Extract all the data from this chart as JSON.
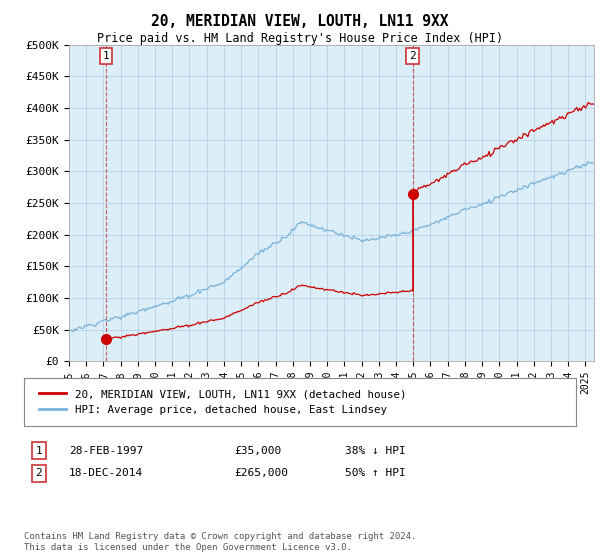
{
  "title": "20, MERIDIAN VIEW, LOUTH, LN11 9XX",
  "subtitle": "Price paid vs. HM Land Registry's House Price Index (HPI)",
  "ylim": [
    0,
    500000
  ],
  "yticks": [
    0,
    50000,
    100000,
    150000,
    200000,
    250000,
    300000,
    350000,
    400000,
    450000,
    500000
  ],
  "ytick_labels": [
    "£0",
    "£50K",
    "£100K",
    "£150K",
    "£200K",
    "£250K",
    "£300K",
    "£350K",
    "£400K",
    "£450K",
    "£500K"
  ],
  "sale1_date": 1997.16,
  "sale1_price": 35000,
  "sale2_date": 2014.96,
  "sale2_price": 265000,
  "legend_entries": [
    "20, MERIDIAN VIEW, LOUTH, LN11 9XX (detached house)",
    "HPI: Average price, detached house, East Lindsey"
  ],
  "table_rows": [
    [
      "1",
      "28-FEB-1997",
      "£35,000",
      "38% ↓ HPI"
    ],
    [
      "2",
      "18-DEC-2014",
      "£265,000",
      "50% ↑ HPI"
    ]
  ],
  "footnote": "Contains HM Land Registry data © Crown copyright and database right 2024.\nThis data is licensed under the Open Government Licence v3.0.",
  "hpi_color": "#7ab3d9",
  "property_color": "#cc0000",
  "background_color": "#ffffff",
  "chart_bg_color": "#dceef7",
  "grid_color": "#b8d0e8",
  "vline_color": "#cc3333"
}
